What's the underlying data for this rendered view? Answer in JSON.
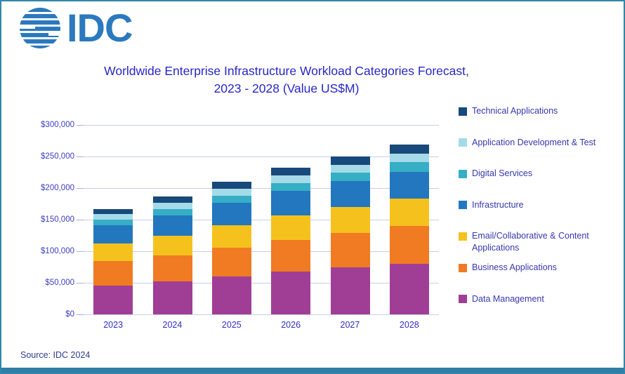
{
  "page": {
    "border_color": "#2F87AA",
    "bottom_bar_color": "#2E7EA6",
    "background": "#FFFFFF",
    "gridline_color": "#C9CCF2"
  },
  "logo": {
    "text": "IDC",
    "color": "#2B79BE",
    "icon": "striped-globe-icon"
  },
  "title": {
    "line1": "Worldwide Enterprise Infrastructure Workload Categories Forecast,",
    "line2": "2023 - 2028 (Value US$M)",
    "color": "#2727C7"
  },
  "source": {
    "text": "Source: IDC 2024",
    "color": "#2F3C8E"
  },
  "text_colors": {
    "axis_labels": "#3C3CC4",
    "year_labels": "#2E2EC4",
    "legend_text": "#3737B0"
  },
  "chart_data": {
    "type": "bar",
    "stacked": true,
    "title": "Worldwide Enterprise Infrastructure Workload Categories Forecast, 2023 - 2028 (Value US$M)",
    "xlabel": "",
    "ylabel": "Value US$M",
    "categories": [
      "2023",
      "2024",
      "2025",
      "2026",
      "2027",
      "2028"
    ],
    "series": [
      {
        "name": "Data Management",
        "color": "#A03E96",
        "values": [
          46000,
          52000,
          60000,
          68000,
          75000,
          80000
        ]
      },
      {
        "name": "Business Applications",
        "color": "#F07B22",
        "values": [
          38000,
          41000,
          46000,
          50000,
          54000,
          60000
        ]
      },
      {
        "name": "Email/Collaborative & Content Applications",
        "color": "#F5C21D",
        "values": [
          28000,
          32000,
          35000,
          39000,
          41000,
          43000
        ]
      },
      {
        "name": "Infrastructure",
        "color": "#2277BE",
        "values": [
          29000,
          32000,
          36000,
          39000,
          41000,
          43000
        ]
      },
      {
        "name": "Digital Services",
        "color": "#35AEC6",
        "values": [
          9000,
          10000,
          11000,
          12000,
          13000,
          15000
        ]
      },
      {
        "name": "Application Development & Test",
        "color": "#A5DBE8",
        "values": [
          9000,
          10000,
          11000,
          12000,
          13000,
          14000
        ]
      },
      {
        "name": "Technical Applications",
        "color": "#17497B",
        "values": [
          8000,
          10000,
          11000,
          12000,
          13000,
          14000
        ]
      }
    ],
    "stack_order": "bottom-to-top as listed",
    "totals": [
      167000,
      187000,
      210000,
      232000,
      250000,
      269000
    ],
    "ylim": [
      0,
      300000
    ],
    "yticks": [
      0,
      50000,
      100000,
      150000,
      200000,
      250000,
      300000
    ],
    "ytick_labels": [
      "$0",
      "$50,000",
      "$100,000",
      "$150,000",
      "$200,000",
      "$250,000",
      "$300,000"
    ],
    "grid": true,
    "legend_position": "right",
    "legend_order_top_to_bottom": [
      "Technical Applications",
      "Application Development & Test",
      "Digital Services",
      "Infrastructure",
      "Email/Collaborative & Content Applications",
      "Business Applications",
      "Data Management"
    ]
  }
}
